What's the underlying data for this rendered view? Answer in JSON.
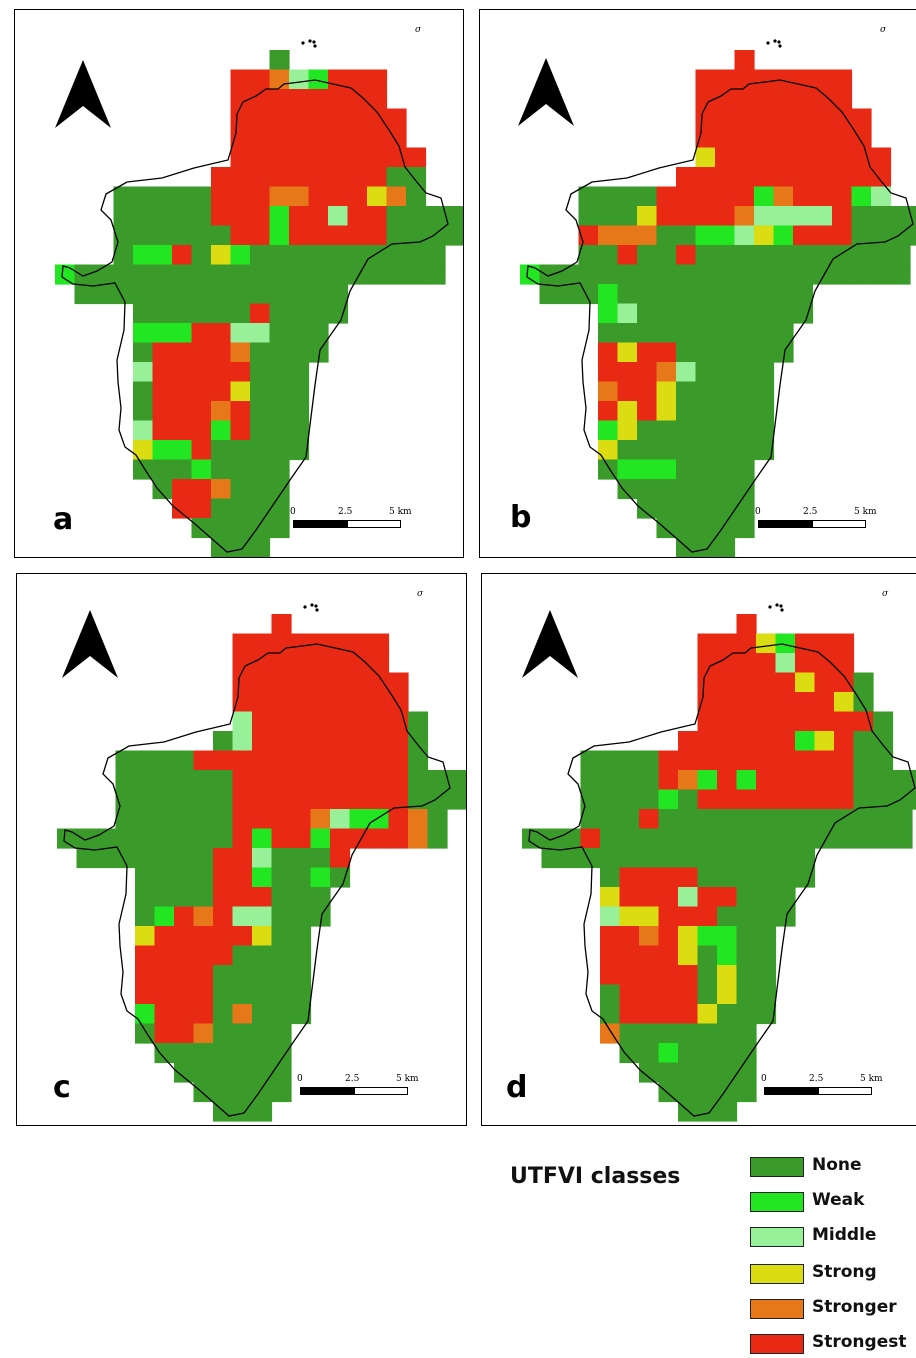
{
  "panels": [
    {
      "id": "a",
      "label": "a"
    },
    {
      "id": "b",
      "label": "b"
    },
    {
      "id": "c",
      "label": "c"
    },
    {
      "id": "d",
      "label": "d"
    }
  ],
  "scale": {
    "tick0": "0",
    "tick1": "2.5",
    "tick2": "5 km"
  },
  "legend": {
    "title": "UTFVI classes",
    "items": [
      {
        "label": "None",
        "color": "#3a9a2a"
      },
      {
        "label": "Weak",
        "color": "#22e622"
      },
      {
        "label": "Middle",
        "color": "#98f098"
      },
      {
        "label": "Strong",
        "color": "#dcdc12"
      },
      {
        "label": "Stronger",
        "color": "#e6781a"
      },
      {
        "label": "Strongest",
        "color": "#e82a14"
      }
    ]
  },
  "colors": {
    "background": "#ffffff",
    "outline": "#000000"
  }
}
